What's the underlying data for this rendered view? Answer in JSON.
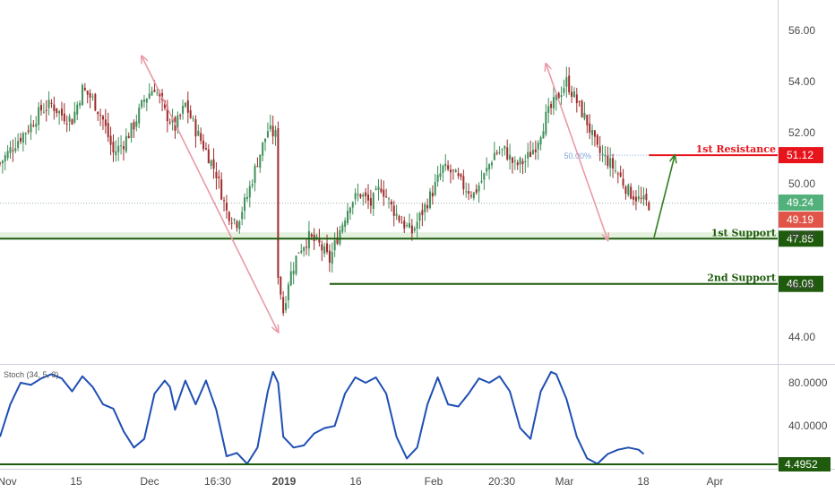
{
  "chart_data": [
    {
      "type": "candlestick",
      "ylim": [
        43.0,
        57.0
      ],
      "y_ticks": [
        56.0,
        54.0,
        52.0,
        50.0,
        48.0,
        46.0,
        44.0
      ],
      "y_tick_labels": [
        "56.00",
        "54.00",
        "52.00",
        "50.00",
        "48.00",
        "46.00",
        "44.00"
      ],
      "x_tick_labels": [
        "Nov",
        "15",
        "Dec",
        "16:30",
        "2019",
        "16",
        "Feb",
        "20:30",
        "Mar",
        "18",
        "Apr"
      ],
      "close_path": [
        [
          0,
          50.8
        ],
        [
          6,
          51.6
        ],
        [
          12,
          52.3
        ],
        [
          16,
          52.9
        ],
        [
          20,
          53.1
        ],
        [
          24,
          52.7
        ],
        [
          28,
          52.5
        ],
        [
          32,
          53.7
        ],
        [
          36,
          53.3
        ],
        [
          40,
          52.5
        ],
        [
          44,
          51.2
        ],
        [
          48,
          51.6
        ],
        [
          52,
          52.3
        ],
        [
          56,
          53.3
        ],
        [
          60,
          53.8
        ],
        [
          64,
          52.8
        ],
        [
          68,
          52.2
        ],
        [
          72,
          53.1
        ],
        [
          76,
          52.1
        ],
        [
          80,
          51.3
        ],
        [
          84,
          50.4
        ],
        [
          88,
          48.9
        ],
        [
          92,
          48.5
        ],
        [
          96,
          49.5
        ],
        [
          100,
          50.9
        ],
        [
          104,
          52.1
        ],
        [
          107,
          51.9
        ],
        [
          108,
          46.5
        ],
        [
          110,
          45.0
        ],
        [
          112,
          46.2
        ],
        [
          116,
          47.4
        ],
        [
          120,
          47.9
        ],
        [
          124,
          47.6
        ],
        [
          128,
          47.0
        ],
        [
          132,
          48.2
        ],
        [
          136,
          49.3
        ],
        [
          140,
          49.6
        ],
        [
          144,
          49.2
        ],
        [
          148,
          49.9
        ],
        [
          152,
          49.1
        ],
        [
          156,
          48.5
        ],
        [
          160,
          48.1
        ],
        [
          164,
          48.9
        ],
        [
          168,
          49.7
        ],
        [
          172,
          50.6
        ],
        [
          176,
          50.4
        ],
        [
          180,
          49.9
        ],
        [
          184,
          49.6
        ],
        [
          188,
          50.3
        ],
        [
          192,
          51.2
        ],
        [
          196,
          51.3
        ],
        [
          200,
          50.7
        ],
        [
          204,
          50.9
        ],
        [
          208,
          51.5
        ],
        [
          212,
          52.6
        ],
        [
          216,
          53.3
        ],
        [
          220,
          54.0
        ],
        [
          224,
          53.2
        ],
        [
          228,
          52.4
        ],
        [
          232,
          51.3
        ],
        [
          236,
          50.9
        ],
        [
          240,
          50.4
        ],
        [
          244,
          49.7
        ],
        [
          248,
          49.4
        ],
        [
          252,
          49.2
        ]
      ],
      "price_range": {
        "low": 44.2,
        "high": 54.5
      },
      "fibonacci": {
        "label": "50.00%",
        "level": 51.12
      },
      "trend_arrows": [
        {
          "from": [
            55.0,
            55.0
          ],
          "to": [
            44.2,
            108.0
          ]
        },
        {
          "from": [
            54.7,
            212.0
          ],
          "to": [
            47.8,
            236.0
          ]
        },
        {
          "from": [
            47.9,
            254.0
          ],
          "to": [
            51.1,
            262.0
          ]
        }
      ],
      "levels": [
        {
          "name": "1st Resistance",
          "value": 51.12,
          "label": "51.12",
          "color": "#e8141b"
        },
        {
          "name": "1st Support",
          "value": 47.85,
          "label": "47.85",
          "color": "#1e5b0c"
        },
        {
          "name": "2nd Support",
          "value": 46.08,
          "label": "46.08",
          "color": "#1e5b0c"
        }
      ],
      "price_badges": [
        {
          "value": 49.24,
          "label": "49.24",
          "color": "#52b07a"
        },
        {
          "value": 49.19,
          "label": "49.19",
          "color": "#e05548"
        }
      ],
      "support_zone": [
        47.85,
        48.1
      ],
      "grid": false
    },
    {
      "type": "line",
      "title": "Stoch (34, 5, 3)",
      "ylim": [
        -3.0,
        94.0
      ],
      "y_tick_labels": [
        "80.0000",
        "40.0000",
        "4.4952"
      ],
      "y_ticks": [
        80.0,
        40.0,
        4.4952
      ],
      "threshold": 4.4952,
      "series": [
        {
          "color": "#1f4fb3",
          "points": [
            [
              0,
              30
            ],
            [
              4,
              60
            ],
            [
              8,
              80
            ],
            [
              12,
              78
            ],
            [
              16,
              84
            ],
            [
              20,
              88
            ],
            [
              24,
              84
            ],
            [
              28,
              72
            ],
            [
              32,
              86
            ],
            [
              36,
              76
            ],
            [
              40,
              60
            ],
            [
              44,
              56
            ],
            [
              48,
              35
            ],
            [
              52,
              20
            ],
            [
              56,
              28
            ],
            [
              60,
              70
            ],
            [
              64,
              82
            ],
            [
              66,
              76
            ],
            [
              68,
              55
            ],
            [
              72,
              82
            ],
            [
              76,
              60
            ],
            [
              80,
              82
            ],
            [
              84,
              55
            ],
            [
              88,
              12
            ],
            [
              92,
              15
            ],
            [
              96,
              5
            ],
            [
              100,
              20
            ],
            [
              104,
              72
            ],
            [
              106,
              90
            ],
            [
              108,
              80
            ],
            [
              110,
              30
            ],
            [
              114,
              20
            ],
            [
              118,
              22
            ],
            [
              122,
              33
            ],
            [
              126,
              38
            ],
            [
              130,
              40
            ],
            [
              134,
              70
            ],
            [
              138,
              85
            ],
            [
              142,
              80
            ],
            [
              146,
              85
            ],
            [
              150,
              70
            ],
            [
              154,
              30
            ],
            [
              158,
              10
            ],
            [
              162,
              20
            ],
            [
              166,
              60
            ],
            [
              170,
              85
            ],
            [
              174,
              60
            ],
            [
              178,
              58
            ],
            [
              182,
              70
            ],
            [
              186,
              84
            ],
            [
              190,
              80
            ],
            [
              194,
              86
            ],
            [
              198,
              72
            ],
            [
              202,
              38
            ],
            [
              206,
              28
            ],
            [
              210,
              72
            ],
            [
              214,
              90
            ],
            [
              216,
              88
            ],
            [
              220,
              65
            ],
            [
              224,
              30
            ],
            [
              228,
              10
            ],
            [
              232,
              5
            ],
            [
              236,
              14
            ],
            [
              240,
              18
            ],
            [
              244,
              20
            ],
            [
              248,
              18
            ],
            [
              250,
              14
            ]
          ]
        }
      ]
    }
  ]
}
